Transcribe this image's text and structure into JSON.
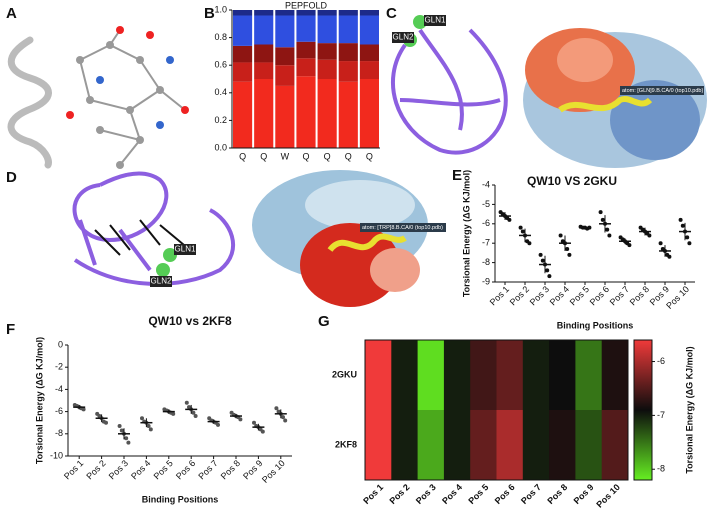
{
  "panel_labels": [
    "A",
    "B",
    "C",
    "D",
    "E",
    "F",
    "G"
  ],
  "annotations": {
    "caption_c": "QW10 VS 2GKU",
    "caption_d": "QW10 vs 2KF8",
    "atom_c": "atom: [GLN]9.B.CA/0 (top10.pdb)",
    "atom_d": "atom: [TRP]8.B.CA/0 (top10.pdb)",
    "gln1_c": "GLN1",
    "gln2_c": "GLN2",
    "gln1_d": "GLN1",
    "gln2_d": "GLN2"
  },
  "chart_data": [
    {
      "type": "stacked",
      "title": "PEPFOLD",
      "categories": [
        "Q",
        "Q",
        "W",
        "Q",
        "Q",
        "Q",
        "Q"
      ],
      "series": [
        {
          "color": "#f22a1e",
          "values": [
            0.48,
            0.5,
            0.45,
            0.52,
            0.5,
            0.48,
            0.5
          ]
        },
        {
          "color": "#c8201a",
          "values": [
            0.14,
            0.12,
            0.15,
            0.13,
            0.14,
            0.15,
            0.13
          ]
        },
        {
          "color": "#8e1512",
          "values": [
            0.12,
            0.13,
            0.13,
            0.12,
            0.12,
            0.13,
            0.12
          ]
        },
        {
          "color": "#2f4fe0",
          "values": [
            0.22,
            0.21,
            0.23,
            0.19,
            0.2,
            0.2,
            0.21
          ]
        },
        {
          "color": "#1d2a8a",
          "values": [
            0.04,
            0.04,
            0.04,
            0.04,
            0.04,
            0.04,
            0.04
          ]
        }
      ],
      "ylim": [
        0,
        1
      ],
      "yticks": [
        {
          "value": 0,
          "label": "0.0"
        },
        0.2,
        0.4,
        0.6,
        0.8,
        {
          "value": 1,
          "label": "1.0"
        }
      ]
    },
    {
      "type": "dot",
      "xlabel": "Binding Positions",
      "ylabel": "Torsional Energy (ΔG KJ/mol)",
      "categories": [
        "Pos 1",
        "Pos 2",
        "Pos 3",
        "Pos 4",
        "Pos 5",
        "Pos 6",
        "Pos 7",
        "Pos 8",
        "Pos 9",
        "Pos 10"
      ],
      "values": [
        -5.6,
        -6.6,
        -8.1,
        -7.0,
        -6.2,
        -6.0,
        -6.9,
        -6.4,
        -7.4,
        -6.4
      ],
      "errors": [
        0.2,
        0.35,
        0.45,
        0.4,
        0.05,
        0.45,
        0.15,
        0.2,
        0.3,
        0.45
      ],
      "points": [
        [
          -5.4,
          -5.5,
          -5.6,
          -5.7,
          -5.8
        ],
        [
          -6.2,
          -6.4,
          -6.6,
          -6.9,
          -7.0
        ],
        [
          -7.6,
          -7.9,
          -8.1,
          -8.4,
          -8.7
        ],
        [
          -6.6,
          -6.9,
          -7.0,
          -7.3,
          -7.6
        ],
        [
          -6.15,
          -6.2,
          -6.2,
          -6.25,
          -6.2
        ],
        [
          -5.4,
          -5.8,
          -6.0,
          -6.3,
          -6.6
        ],
        [
          -6.7,
          -6.8,
          -6.9,
          -7.0,
          -7.1
        ],
        [
          -6.2,
          -6.3,
          -6.4,
          -6.5,
          -6.6
        ],
        [
          -7.0,
          -7.3,
          -7.4,
          -7.6,
          -7.7
        ],
        [
          -5.8,
          -6.1,
          -6.4,
          -6.7,
          -7.0
        ]
      ],
      "color": "#111111",
      "ylim": [
        -9,
        -4
      ],
      "yticks": [
        -9,
        -8,
        -7,
        -6,
        -5,
        -4
      ]
    },
    {
      "type": "dot",
      "xlabel": "Binding Positions",
      "ylabel": "Torsional Energy (ΔG KJ/mol)",
      "categories": [
        "Pos 1",
        "Pos 2",
        "Pos 3",
        "Pos 4",
        "Pos 5",
        "Pos 6",
        "Pos 7",
        "Pos 8",
        "Pos 9",
        "Pos 10"
      ],
      "values": [
        -5.6,
        -6.6,
        -8.0,
        -7.0,
        -6.0,
        -5.8,
        -6.9,
        -6.4,
        -7.4,
        -6.2
      ],
      "errors": [
        0.2,
        0.35,
        0.5,
        0.4,
        0.2,
        0.4,
        0.2,
        0.2,
        0.3,
        0.4
      ],
      "points": [
        [
          -5.4,
          -5.5,
          -5.6,
          -5.7,
          -5.8
        ],
        [
          -6.2,
          -6.4,
          -6.6,
          -6.9,
          -7.0
        ],
        [
          -7.3,
          -7.7,
          -8.0,
          -8.4,
          -8.8
        ],
        [
          -6.6,
          -6.9,
          -7.0,
          -7.3,
          -7.6
        ],
        [
          -5.8,
          -5.9,
          -6.0,
          -6.1,
          -6.2
        ],
        [
          -5.2,
          -5.6,
          -5.8,
          -6.1,
          -6.4
        ],
        [
          -6.6,
          -6.8,
          -6.9,
          -7.0,
          -7.2
        ],
        [
          -6.1,
          -6.3,
          -6.4,
          -6.5,
          -6.7
        ],
        [
          -7.0,
          -7.3,
          -7.4,
          -7.6,
          -7.8
        ],
        [
          -5.7,
          -6.0,
          -6.2,
          -6.5,
          -6.8
        ]
      ],
      "color": "#555555",
      "ylim": [
        -10,
        0
      ],
      "yticks": [
        -10,
        -8,
        -6,
        -4,
        -2,
        0
      ]
    },
    {
      "type": "heatmap",
      "ylabel": "Torsional Energy (ΔG KJ/mol)",
      "rows": [
        "2GKU",
        "2KF8"
      ],
      "columns": [
        "Pos 1",
        "Pos 2",
        "Pos 3",
        "Pos 4",
        "Pos 5",
        "Pos 6",
        "Pos 7",
        "Pos 8",
        "Pos 9",
        "Pos 10"
      ],
      "values": [
        [
          -5.6,
          -7.0,
          -8.1,
          -7.0,
          -6.6,
          -6.4,
          -7.0,
          -6.9,
          -7.5,
          -6.8
        ],
        [
          -5.6,
          -7.0,
          -7.8,
          -7.0,
          -6.4,
          -6.0,
          -7.0,
          -6.8,
          -7.3,
          -6.5
        ]
      ],
      "colors": [
        "#66ee22",
        "#0d0d0d",
        "#f03a3a"
      ],
      "clim": [
        -8.2,
        -5.6
      ],
      "cticks": [
        -8,
        -7,
        -6
      ]
    }
  ]
}
